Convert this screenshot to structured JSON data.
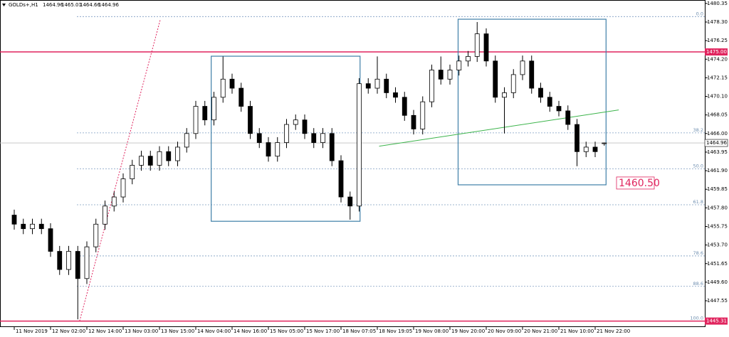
{
  "chart_data": {
    "type": "candlestick",
    "symbol": "GOLDs+,H1",
    "ohlc": [
      1464.96,
      1465.01,
      1464.66,
      1464.96
    ],
    "ylim": [
      1444.65,
      1480.73
    ],
    "yticks": [
      1480.35,
      {
        "value": 1478.3,
        "label": "1478.30"
      },
      1476.25,
      {
        "value": 1474.2,
        "label": "1474.20"
      },
      1472.15,
      {
        "value": 1470.1,
        "label": "1470.10"
      },
      1468.05,
      {
        "value": 1466,
        "label": "1466.00"
      },
      1463.95,
      {
        "value": 1461.9,
        "label": "1461.90"
      },
      1459.85,
      {
        "value": 1457.8,
        "label": "1457.80"
      },
      1455.75,
      {
        "value": 1453.7,
        "label": "1453.70"
      },
      1451.65,
      {
        "value": 1449.6,
        "label": "1449.60"
      },
      1447.55
    ],
    "categories": [
      "11 Nov 2019",
      null,
      null,
      null,
      "12 Nov 02:00",
      null,
      null,
      null,
      "12 Nov 14:00",
      null,
      null,
      null,
      "13 Nov 03:00",
      null,
      null,
      null,
      "13 Nov 15:00",
      null,
      null,
      null,
      "14 Nov 04:00",
      null,
      null,
      null,
      "14 Nov 16:00",
      null,
      null,
      null,
      "15 Nov 05:00",
      null,
      null,
      null,
      "15 Nov 17:00",
      null,
      null,
      null,
      "18 Nov 07:05",
      null,
      null,
      null,
      "18 Nov 19:05",
      null,
      null,
      null,
      "19 Nov 08:00",
      null,
      null,
      null,
      "19 Nov 20:00",
      null,
      null,
      null,
      "20 Nov 09:00",
      null,
      null,
      null,
      "20 Nov 21:00",
      null,
      null,
      null,
      "21 Nov 10:00",
      null,
      null,
      null,
      "21 Nov 22:00",
      null
    ],
    "open": [
      1457,
      1456,
      1455.5,
      1456,
      1455.5,
      1453,
      1451,
      1453,
      1450,
      1453.5,
      1456,
      1458,
      1459,
      1461,
      1462.5,
      1463.5,
      1462.5,
      1464,
      1463,
      1464.5,
      1466,
      1469,
      1467.5,
      1470,
      1472,
      1471,
      1469,
      1466,
      1465,
      1463.5,
      1465,
      1467,
      1467.5,
      1466,
      1465,
      1466,
      1463,
      1459,
      1458,
      1471.5,
      1471,
      1472,
      1470.5,
      1470,
      1468,
      1466.5,
      1469.5,
      1473,
      1472,
      1473,
      1474,
      1474.5,
      1477,
      1474,
      1470,
      1470.5,
      1472.5,
      1474,
      1471,
      1470,
      1469,
      1468.5,
      1467,
      1464,
      1464.5,
      1464.96
    ],
    "high": [
      1457.6,
      1456.6,
      1456.6,
      1456.6,
      1456.1,
      1453.6,
      1453.6,
      1453.6,
      1454.1,
      1456.6,
      1458.6,
      1459.6,
      1461.6,
      1463.1,
      1464.1,
      1464.1,
      1464.6,
      1464.6,
      1465.1,
      1466.6,
      1469.6,
      1469.6,
      1470.6,
      1474.5,
      1472.6,
      1471.6,
      1469.6,
      1466.6,
      1465.6,
      1465.6,
      1467.6,
      1468.1,
      1468.1,
      1466.6,
      1466.6,
      1466.6,
      1463.6,
      1459.6,
      1472.1,
      1472.1,
      1474.5,
      1472.6,
      1471.1,
      1470.6,
      1468.6,
      1470.1,
      1473.6,
      1474.5,
      1473.6,
      1474.6,
      1475.1,
      1478.3,
      1477.6,
      1474.6,
      1471.1,
      1473.1,
      1474.6,
      1474.6,
      1471.6,
      1470.6,
      1469.6,
      1469.1,
      1467.6,
      1465.1,
      1465.1,
      1465.01
    ],
    "low": [
      1455.4,
      1454.9,
      1454.9,
      1454.9,
      1452.4,
      1450.4,
      1450.4,
      1445.5,
      1449.4,
      1452.9,
      1455.4,
      1457.4,
      1458.4,
      1460.4,
      1461.9,
      1461.9,
      1461.9,
      1462.4,
      1462.4,
      1463.9,
      1465.4,
      1466.9,
      1466.9,
      1469.4,
      1470.4,
      1468.4,
      1465.4,
      1464.4,
      1462.9,
      1462.9,
      1464.4,
      1466.4,
      1465.4,
      1464.4,
      1464.4,
      1462.4,
      1458.4,
      1456.5,
      1457.4,
      1470.4,
      1470.4,
      1469.9,
      1469.4,
      1467.4,
      1465.9,
      1465.9,
      1468.9,
      1471.4,
      1471.4,
      1472.4,
      1473.4,
      1473.9,
      1473.4,
      1469.4,
      1466,
      1469.9,
      1471.9,
      1470.4,
      1469.4,
      1468.4,
      1467.9,
      1466.4,
      1462.4,
      1463.4,
      1463.4,
      1464.66
    ],
    "close": [
      1456,
      1455.5,
      1456,
      1455.5,
      1453,
      1451,
      1453,
      1450,
      1453.5,
      1456,
      1458,
      1459,
      1461,
      1462.5,
      1463.5,
      1462.5,
      1464,
      1463,
      1464.5,
      1466,
      1469,
      1467.5,
      1470,
      1472,
      1471,
      1469,
      1466,
      1465,
      1463.5,
      1465,
      1467,
      1467.5,
      1466,
      1465,
      1466,
      1463,
      1459,
      1458,
      1471.5,
      1471,
      1472,
      1470.5,
      1470,
      1468,
      1466.5,
      1469.5,
      1473,
      1472,
      1473,
      1474,
      1474.5,
      1477,
      1474,
      1470,
      1470.5,
      1472.5,
      1474,
      1471,
      1470,
      1469,
      1468.5,
      1467,
      1464,
      1464.5,
      1464,
      1464.96
    ],
    "hlines": [
      {
        "value": 1475,
        "label": "1475.00",
        "color": "#e0245e"
      },
      {
        "value": 1445.31,
        "color": "#e0245e"
      }
    ],
    "current_price": 1464.96,
    "fibonacci": [
      {
        "level": "0.0",
        "price": 1478.9
      },
      {
        "level": "38.2",
        "price": 1466.07
      },
      {
        "level": "50.0",
        "price": 1462.11
      },
      {
        "level": "61.8",
        "price": 1458.14
      },
      {
        "level": "78.6",
        "price": 1452.5
      },
      {
        "level": "88.6",
        "price": 1449.14
      },
      {
        "level": "100.0",
        "price": 1445.31
      }
    ],
    "rectangles": [
      {
        "x": [
          21.7,
          38.1
        ],
        "y": [
          1456.32,
          1474.53
        ]
      },
      {
        "x": [
          48.9,
          65.2
        ],
        "y": [
          1460.34,
          1478.61
        ]
      }
    ],
    "trendlines": [
      {
        "x": [
          40.2,
          66.6
        ],
        "y": [
          1464.6,
          1468.6
        ],
        "color": "#3cb44b"
      },
      {
        "x": [
          7.2,
          16.1
        ],
        "y": [
          1445.31,
          1478.6
        ],
        "color": "#e0245e"
      }
    ],
    "annotation": {
      "value": 1460.5,
      "label": "1460.50"
    }
  }
}
